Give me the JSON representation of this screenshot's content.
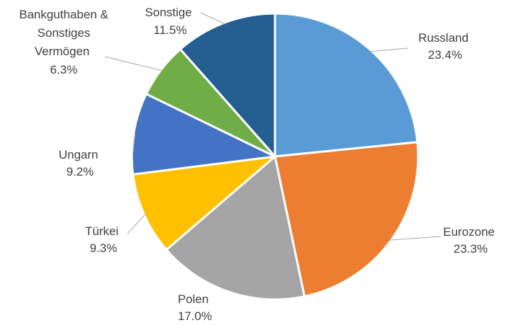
{
  "chart_data": {
    "type": "pie",
    "start_angle_deg": 0,
    "direction": "clockwise",
    "slices": [
      {
        "label": "Russland",
        "value": 23.4,
        "display": "23.4%",
        "color": "#5b9bd5"
      },
      {
        "label": "Eurozone",
        "value": 23.3,
        "display": "23.3%",
        "color": "#ed7d31"
      },
      {
        "label": "Polen",
        "value": 17.0,
        "display": "17.0%",
        "color": "#a5a5a5"
      },
      {
        "label": "Türkei",
        "value": 9.3,
        "display": "9.3%",
        "color": "#ffc000"
      },
      {
        "label": "Ungarn",
        "value": 9.2,
        "display": "9.2%",
        "color": "#4472c4"
      },
      {
        "label": "Bankguthaben & Sonstiges Vermögen",
        "value": 6.3,
        "display": "6.3%",
        "color": "#70ad47"
      },
      {
        "label": "Sonstige",
        "value": 11.5,
        "display": "11.5%",
        "color": "#255e91"
      }
    ],
    "legend": "none",
    "data_labels": "outside-with-leader-lines"
  }
}
